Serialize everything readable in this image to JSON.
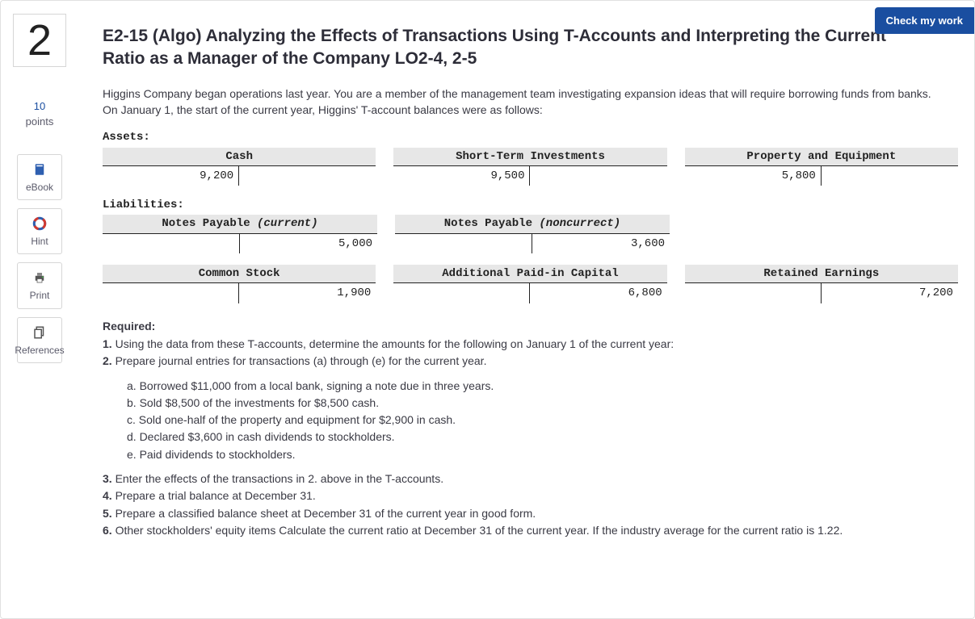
{
  "header": {
    "check_label": "Check my work"
  },
  "sidebar": {
    "question_number": "2",
    "points_value": "10",
    "points_label": "points",
    "tools": {
      "ebook": "eBook",
      "hint": "Hint",
      "print": "Print",
      "references": "References"
    }
  },
  "content": {
    "title": "E2-15 (Algo) Analyzing the Effects of Transactions Using T-Accounts and Interpreting the Current Ratio as a Manager of the Company LO2-4, 2-5",
    "intro": "Higgins Company began operations last year. You are a member of the management team investigating expansion ideas that will require borrowing funds from banks. On January 1, the start of the current year, Higgins' T-account balances were as follows:",
    "sections": {
      "assets_label": "Assets:",
      "liabilities_label": "Liabilities:"
    },
    "taccounts": {
      "assets": [
        {
          "title_plain": "Cash",
          "title_ital": "",
          "debit": "9,200",
          "credit": ""
        },
        {
          "title_plain": "Short-Term Investments",
          "title_ital": "",
          "debit": "9,500",
          "credit": ""
        },
        {
          "title_plain": "Property and Equipment",
          "title_ital": "",
          "debit": "5,800",
          "credit": ""
        }
      ],
      "liabilities": [
        {
          "title_plain": "Notes Payable ",
          "title_ital": "(current)",
          "debit": "",
          "credit": "5,000"
        },
        {
          "title_plain": "Notes Payable ",
          "title_ital": "(noncurrect)",
          "debit": "",
          "credit": "3,600"
        }
      ],
      "equity": [
        {
          "title_plain": "Common Stock",
          "title_ital": "",
          "debit": "",
          "credit": "1,900"
        },
        {
          "title_plain": "Additional Paid-in Capital",
          "title_ital": "",
          "debit": "",
          "credit": "6,800"
        },
        {
          "title_plain": "Retained Earnings",
          "title_ital": "",
          "debit": "",
          "credit": "7,200"
        }
      ]
    },
    "required_label": "Required:",
    "requirements": [
      "Using the data from these T-accounts, determine the amounts for the following on January 1 of the current year:",
      "Prepare journal entries for transactions (a) through (e) for the current year."
    ],
    "sub_items": [
      "Borrowed $11,000 from a local bank, signing a note due in three years.",
      "Sold $8,500 of the investments for $8,500 cash.",
      "Sold one-half of the property and equipment for $2,900 in cash.",
      "Declared $3,600 in cash dividends to stockholders.",
      "Paid dividends to stockholders."
    ],
    "requirements_cont": [
      "Enter the effects of the transactions in 2. above in the T-accounts.",
      "Prepare a trial balance at December 31.",
      "Prepare a classified balance sheet at December 31 of the current year in good form.",
      "Other stockholders' equity items Calculate the current ratio at December 31 of the current year. If the industry average for the current ratio is 1.22."
    ],
    "colors": {
      "header_bg": "#e7e7e7",
      "accent": "#1a4ea0",
      "border": "#222222"
    }
  }
}
